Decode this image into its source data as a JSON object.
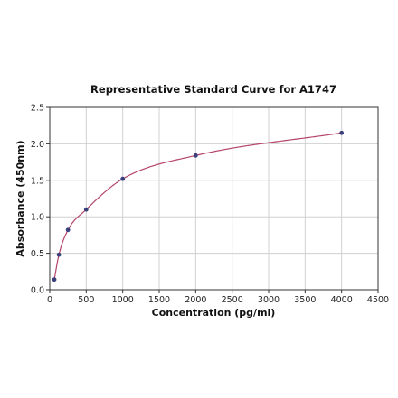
{
  "chart_data": {
    "type": "scatter",
    "title": "Representative Standard Curve for A1747",
    "xlabel": "Concentration (pg/ml)",
    "ylabel": "Absorbance (450nm)",
    "xlim": [
      0,
      4500
    ],
    "ylim": [
      0,
      2.5
    ],
    "x_ticks": [
      "0",
      "500",
      "1000",
      "1500",
      "2000",
      "2500",
      "3000",
      "3500",
      "4000",
      "4500"
    ],
    "y_ticks": [
      "0.0",
      "0.5",
      "1.0",
      "1.5",
      "2.0",
      "2.5"
    ],
    "grid": true,
    "legend": "none",
    "series": [
      {
        "x": [
          62.5,
          125,
          250,
          500,
          1000,
          2000,
          4000
        ],
        "y": [
          0.14,
          0.48,
          0.82,
          1.1,
          1.52,
          1.84,
          2.15
        ],
        "marker_color": "#3b3f7a",
        "fit_line": true,
        "fit_color": "#b5446a"
      }
    ]
  }
}
